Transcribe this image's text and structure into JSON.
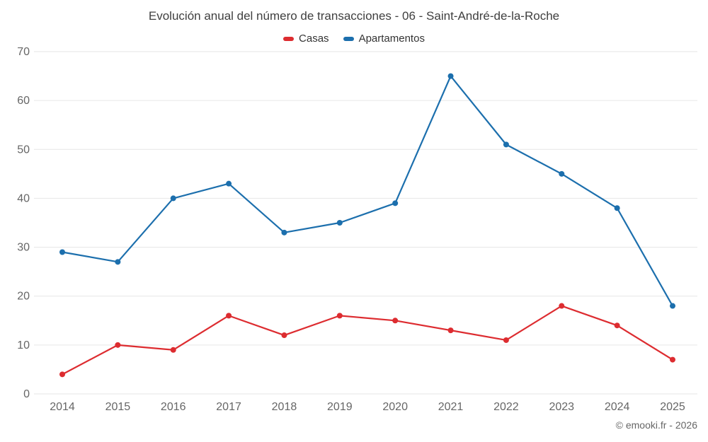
{
  "chart_data": {
    "type": "line",
    "title": "Evolución anual del número de transacciones - 06 - Saint-André-de-la-Roche",
    "categories": [
      "2014",
      "2015",
      "2016",
      "2017",
      "2018",
      "2019",
      "2020",
      "2021",
      "2022",
      "2023",
      "2024",
      "2025"
    ],
    "series": [
      {
        "name": "Casas",
        "color": "#dd2c30",
        "values": [
          4,
          10,
          9,
          16,
          12,
          16,
          15,
          13,
          11,
          18,
          14,
          7
        ]
      },
      {
        "name": "Apartamentos",
        "color": "#1c6fad",
        "values": [
          29,
          27,
          40,
          43,
          33,
          35,
          39,
          65,
          51,
          45,
          38,
          18
        ]
      }
    ],
    "xlabel": "",
    "ylabel": "",
    "ylim": [
      0,
      70
    ],
    "ytick_step": 10,
    "grid": true,
    "grid_color": "#e6e6e6",
    "legend_position": "top",
    "axis_label_color": "#666666"
  },
  "footer": {
    "credit": "© emooki.fr - 2026"
  }
}
